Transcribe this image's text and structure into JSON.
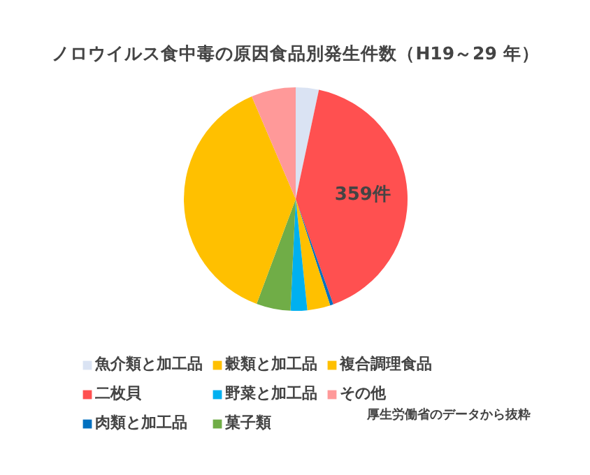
{
  "chart_data": {
    "type": "pie",
    "title": "ノロウイルス食中毒の原因食品別発生件数（H19～29 年）",
    "categories": [
      "魚介類と加工品",
      "二枚貝",
      "肉類と加工品",
      "穀類と加工品",
      "野菜と加工品",
      "菓子類",
      "複合調理食品",
      "その他"
    ],
    "values": [
      29,
      359,
      4,
      29,
      21,
      43,
      330,
      56
    ],
    "colors": [
      "#dae3f3",
      "#ff5050",
      "#0070c0",
      "#ffc000",
      "#00b0f0",
      "#70ad47",
      "#ffc000",
      "#ff9999"
    ],
    "value_labels": [
      null,
      "359件",
      null,
      null,
      null,
      null,
      null,
      null
    ],
    "legend": "bottom",
    "annotations": [
      "厚生労働省のデータから抜粋"
    ]
  }
}
